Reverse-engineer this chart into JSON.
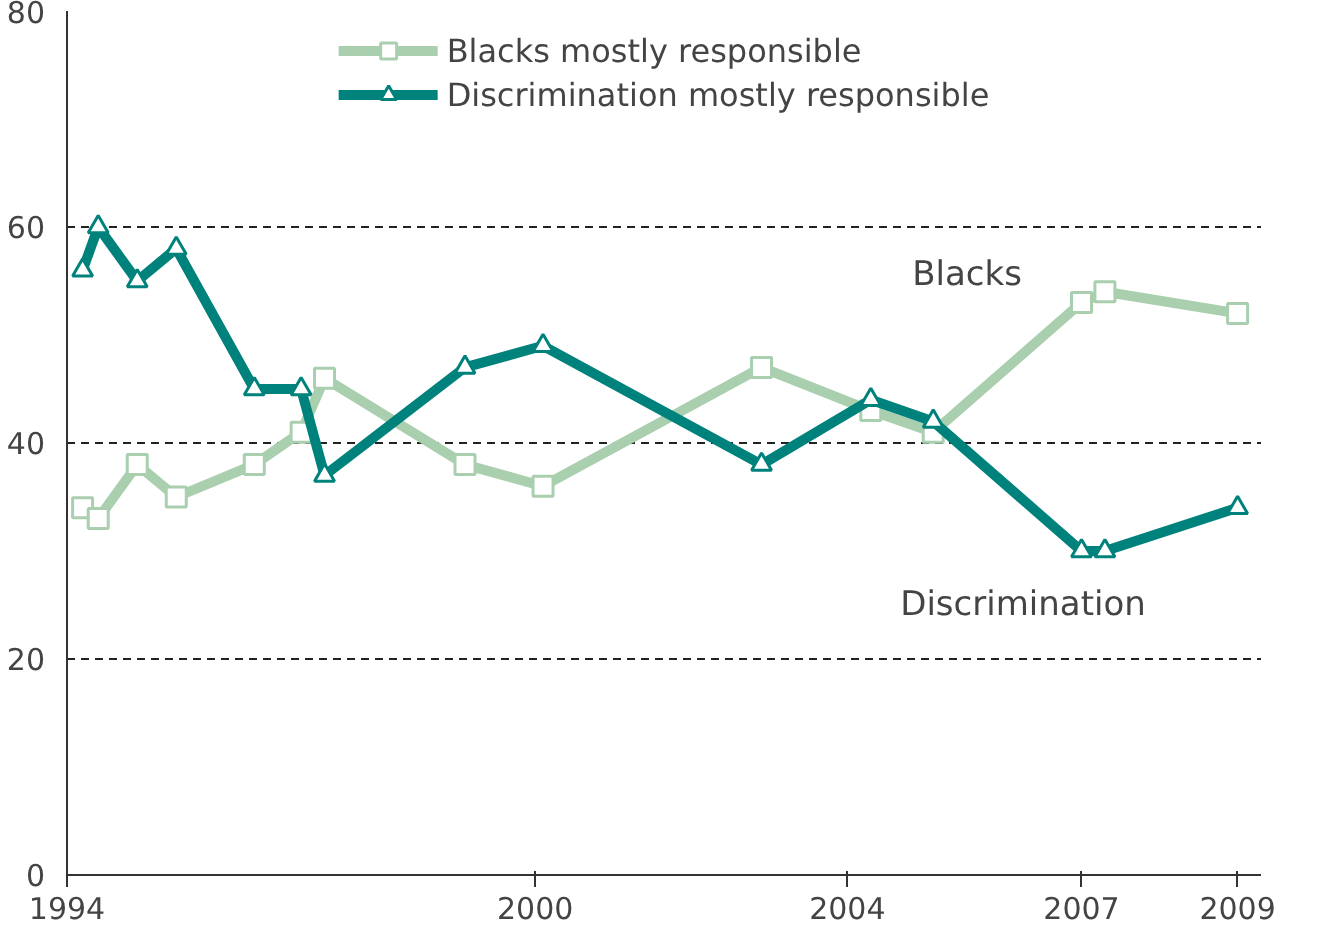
{
  "chart_data": {
    "type": "line",
    "x": [
      1994.2,
      1994.4,
      1994.9,
      1995.4,
      1996.4,
      1997.0,
      1997.3,
      1999.1,
      2000.1,
      2002.9,
      2004.3,
      2005.1,
      2007.0,
      2007.3,
      2009.0
    ],
    "series": [
      {
        "name": "Blacks mostly responsible",
        "color": "#a9cfae",
        "marker": "square",
        "values": [
          34,
          33,
          38,
          35,
          38,
          41,
          46,
          38,
          36,
          47,
          43,
          41,
          53,
          54,
          52
        ]
      },
      {
        "name": "Discrimination mostly responsible",
        "color": "#00827c",
        "marker": "triangle",
        "values": [
          56,
          60,
          55,
          58,
          45,
          45,
          37,
          47,
          49,
          38,
          44,
          42,
          30,
          30,
          34
        ]
      }
    ],
    "xlim": [
      1994.0,
      2009.3
    ],
    "xticks": [
      1994,
      2000,
      2004,
      2007,
      2009
    ],
    "ylim": [
      0,
      80
    ],
    "yticks": [
      0,
      20,
      40,
      60,
      80
    ],
    "grid": "y",
    "legend": "top",
    "annotations": [
      "Blacks",
      "Discrimination"
    ]
  }
}
